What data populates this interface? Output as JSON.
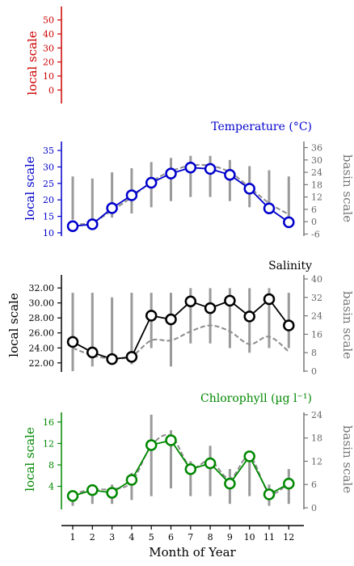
{
  "xlabel": "Month of Year",
  "months": [
    "1",
    "2",
    "3",
    "4",
    "5",
    "6",
    "7",
    "8",
    "9",
    "10",
    "11",
    "12"
  ],
  "chart_data": [
    {
      "type": "line",
      "title": "",
      "color": "#cc0000",
      "ylabel_left": "local scale",
      "y_left_ticks": [
        "0",
        "10",
        "20",
        "30",
        "40",
        "50"
      ],
      "ylim_left": [
        -5,
        55
      ],
      "series": []
    },
    {
      "type": "line",
      "title": "Temperature (°C)",
      "color": "#0000cc",
      "ylabel_left": "local scale",
      "ylabel_right": "basin scale",
      "y_left_ticks": [
        "10",
        "15",
        "20",
        "25",
        "30",
        "35"
      ],
      "y_right_ticks": [
        "-6",
        "0",
        "6",
        "12",
        "18",
        "24",
        "30",
        "36"
      ],
      "ylim_left": [
        9,
        36.5
      ],
      "ylim_right": [
        -7,
        37
      ],
      "x": [
        1,
        2,
        3,
        4,
        5,
        6,
        7,
        8,
        9,
        10,
        11,
        12
      ],
      "local": [
        12.0,
        12.6,
        17.5,
        21.4,
        25.2,
        28.0,
        29.8,
        29.4,
        27.6,
        23.4,
        17.4,
        13.2
      ],
      "basin_mean": [
        12.5,
        13.2,
        16.8,
        20.8,
        25.5,
        28.7,
        30.4,
        30.4,
        28.4,
        23.8,
        19.0,
        15.6
      ],
      "basin_range": [
        [
          1,
          22
        ],
        [
          1,
          21
        ],
        [
          2,
          24
        ],
        [
          4,
          26
        ],
        [
          7,
          29
        ],
        [
          10,
          31
        ],
        [
          12,
          32
        ],
        [
          12,
          32
        ],
        [
          10,
          30
        ],
        [
          7,
          27
        ],
        [
          4,
          25
        ],
        [
          2,
          22
        ]
      ]
    },
    {
      "type": "line",
      "title": "Salinity",
      "color": "#000000",
      "ylabel_left": "local scale",
      "ylabel_right": "basin scale",
      "y_left_ticks": [
        "22.00",
        "24.00",
        "26.00",
        "28.00",
        "30.00",
        "32.00"
      ],
      "y_right_ticks": [
        "0",
        "8",
        "16",
        "24",
        "32",
        "40"
      ],
      "ylim_left": [
        20.9,
        33.2
      ],
      "ylim_right": [
        0,
        40
      ],
      "x": [
        1,
        2,
        3,
        4,
        5,
        6,
        7,
        8,
        9,
        10,
        11,
        12
      ],
      "local": [
        24.8,
        23.4,
        22.5,
        22.8,
        28.3,
        27.8,
        30.2,
        29.3,
        30.3,
        28.2,
        30.5,
        27.0
      ],
      "basin_mean": [
        24.0,
        23.0,
        22.6,
        22.9,
        25.0,
        25.0,
        26.2,
        27.0,
        26.2,
        24.5,
        25.5,
        23.5
      ],
      "basin_range": [
        [
          0,
          34
        ],
        [
          2,
          34
        ],
        [
          3,
          32
        ],
        [
          3,
          34
        ],
        [
          10,
          34
        ],
        [
          2,
          34
        ],
        [
          12,
          36
        ],
        [
          12,
          36
        ],
        [
          10,
          36
        ],
        [
          8,
          36
        ],
        [
          10,
          36
        ],
        [
          10,
          34
        ]
      ]
    },
    {
      "type": "line",
      "title": "Chlorophyll (µg l⁻¹)",
      "color": "#008800",
      "ylabel_left": "local scale",
      "ylabel_right": "basin scale",
      "y_left_ticks": [
        "4",
        "8",
        "12",
        "16"
      ],
      "y_right_ticks": [
        "0",
        "6",
        "12",
        "18",
        "24"
      ],
      "ylim_left": [
        0,
        17.8
      ],
      "ylim_right": [
        0,
        24.6
      ],
      "x": [
        1,
        2,
        3,
        4,
        5,
        6,
        7,
        8,
        9,
        10,
        11,
        12
      ],
      "local": [
        2.2,
        3.3,
        2.8,
        5.2,
        11.7,
        12.6,
        7.2,
        8.3,
        4.5,
        9.6,
        2.5,
        4.5
      ],
      "basin_mean": [
        2.6,
        3.4,
        3.5,
        4.8,
        11.6,
        13.4,
        7.6,
        8.8,
        5.4,
        9.6,
        2.8,
        4.6
      ],
      "basin_range": [
        [
          0.5,
          4.5
        ],
        [
          1,
          5
        ],
        [
          1,
          6
        ],
        [
          2,
          9
        ],
        [
          3,
          24
        ],
        [
          5,
          20
        ],
        [
          3,
          12
        ],
        [
          3,
          16
        ],
        [
          1,
          10
        ],
        [
          3,
          12
        ],
        [
          0.5,
          6
        ],
        [
          1,
          10
        ]
      ]
    }
  ]
}
